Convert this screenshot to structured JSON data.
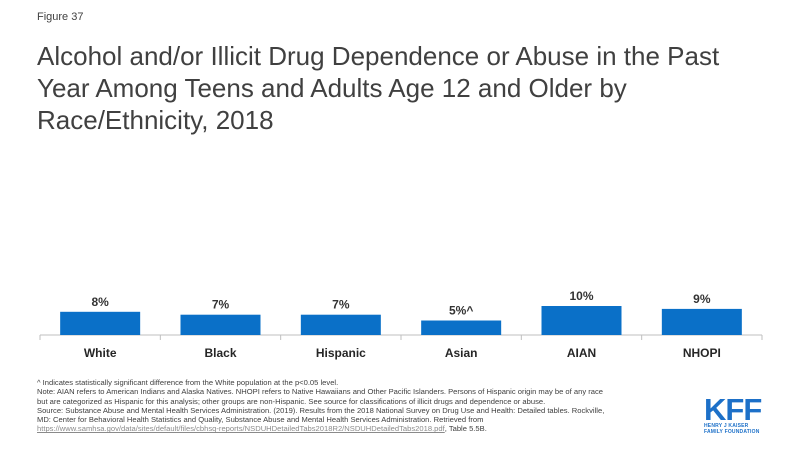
{
  "figure_label": "Figure 37",
  "title": "Alcohol and/or Illicit Drug Dependence or Abuse in the Past Year Among Teens and Adults Age 12 and Older by Race/Ethnicity, 2018",
  "chart_data": {
    "type": "bar",
    "categories": [
      "White",
      "Black",
      "Hispanic",
      "Asian",
      "AIAN",
      "NHOPI"
    ],
    "values": [
      8,
      7,
      7,
      5,
      10,
      9
    ],
    "data_labels": [
      "8%",
      "7%",
      "7%",
      "5%^",
      "10%",
      "9%"
    ],
    "ylim": [
      0,
      10
    ],
    "grid": false,
    "bar_color": "#0a70c8",
    "axis_color": "#bfbfbf"
  },
  "notes": {
    "line1": "^ Indicates statistically significant difference from the White population at the p<0.05 level.",
    "line2": "Note: AIAN  refers to American Indians and Alaska Natives. NHOPI  refers to Native Hawaiians  and Other Pacific Islanders. Persons of Hispanic  origin may be of any race",
    "line3": "but are categorized as Hispanic for this analysis; other groups are non-Hispanic. See source for classifications of illicit drugs and dependence or abuse.",
    "line4": "Source: Substance Abuse and Mental Health Services Administration. (2019). Results from the 2018 National Survey on Drug Use and Health: Detailed tables. Rockville,",
    "line5": "MD: Center for Behavioral Health Statistics and Quality, Substance Abuse and Mental Health Services Administration. Retrieved from",
    "link": "https://www.samhsa.gov/data/sites/default/files/cbhsq-reports/NSDUHDetailedTabs2018R2/NSDUHDetailedTabs2018.pdf",
    "link_suffix": ", Table 5.5B."
  },
  "logo": {
    "mark": "KFF",
    "line1": "HENRY J KAISER",
    "line2": "FAMILY FOUNDATION",
    "color": "#1d70c8"
  }
}
